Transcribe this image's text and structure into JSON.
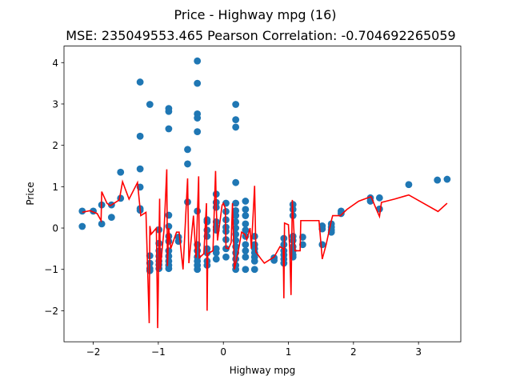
{
  "chart_data": {
    "type": "scatter",
    "title": "Price - Highway mpg (16)",
    "subtitle": "MSE: 235049553.465 Pearson Correlation: -0.704692265059",
    "xlabel": "Highway mpg",
    "ylabel": "Price",
    "xlim": [
      -2.45,
      3.65
    ],
    "ylim": [
      -2.75,
      4.4
    ],
    "xticks": [
      -2,
      -1,
      0,
      1,
      2,
      3
    ],
    "yticks": [
      -2,
      -1,
      0,
      1,
      2,
      3,
      4
    ],
    "grid": false,
    "colors": {
      "points": "#1f77b4",
      "line": "#ff0000",
      "axes": "#000000",
      "background": "#ffffff"
    },
    "series": [
      {
        "kind": "scatter",
        "points": [
          [
            -2.17,
            0.41
          ],
          [
            -2.17,
            0.04
          ],
          [
            -2.0,
            0.41
          ],
          [
            -1.87,
            0.56
          ],
          [
            -1.87,
            0.1
          ],
          [
            -1.72,
            0.56
          ],
          [
            -1.72,
            0.26
          ],
          [
            -1.58,
            1.35
          ],
          [
            -1.58,
            0.72
          ],
          [
            -1.28,
            3.53
          ],
          [
            -1.28,
            2.22
          ],
          [
            -1.28,
            1.43
          ],
          [
            -1.28,
            0.99
          ],
          [
            -1.28,
            0.47
          ],
          [
            -1.28,
            0.43
          ],
          [
            -1.13,
            2.99
          ],
          [
            -1.13,
            -0.67
          ],
          [
            -1.13,
            -0.85
          ],
          [
            -1.13,
            -0.98
          ],
          [
            -1.13,
            -1.03
          ],
          [
            -0.99,
            -0.04
          ],
          [
            -0.99,
            -0.37
          ],
          [
            -0.99,
            -0.55
          ],
          [
            -0.99,
            -0.68
          ],
          [
            -0.99,
            -0.8
          ],
          [
            -0.99,
            -0.89
          ],
          [
            -0.99,
            -0.98
          ],
          [
            -0.84,
            2.89
          ],
          [
            -0.84,
            2.82
          ],
          [
            -0.84,
            2.4
          ],
          [
            -0.84,
            0.31
          ],
          [
            -0.84,
            0.04
          ],
          [
            -0.84,
            -0.2
          ],
          [
            -0.84,
            -0.32
          ],
          [
            -0.84,
            -0.55
          ],
          [
            -0.84,
            -0.68
          ],
          [
            -0.84,
            -0.8
          ],
          [
            -0.84,
            -0.9
          ],
          [
            -0.84,
            -0.98
          ],
          [
            -0.69,
            -0.22
          ],
          [
            -0.69,
            -0.32
          ],
          [
            -0.55,
            1.9
          ],
          [
            -0.55,
            1.55
          ],
          [
            -0.55,
            0.63
          ],
          [
            -0.4,
            4.04
          ],
          [
            -0.4,
            3.5
          ],
          [
            -0.4,
            2.76
          ],
          [
            -0.4,
            2.66
          ],
          [
            -0.4,
            2.33
          ],
          [
            -0.4,
            0.41
          ],
          [
            -0.4,
            -0.4
          ],
          [
            -0.4,
            -0.55
          ],
          [
            -0.4,
            -0.7
          ],
          [
            -0.4,
            -0.8
          ],
          [
            -0.4,
            -0.9
          ],
          [
            -0.4,
            -1.0
          ],
          [
            -0.25,
            0.2
          ],
          [
            -0.25,
            0.15
          ],
          [
            -0.25,
            -0.05
          ],
          [
            -0.25,
            -0.2
          ],
          [
            -0.25,
            -0.5
          ],
          [
            -0.25,
            -0.6
          ],
          [
            -0.25,
            -0.8
          ],
          [
            -0.25,
            -0.9
          ],
          [
            -0.11,
            0.82
          ],
          [
            -0.11,
            0.62
          ],
          [
            -0.11,
            0.5
          ],
          [
            -0.11,
            0.15
          ],
          [
            -0.11,
            0.02
          ],
          [
            -0.11,
            -0.05
          ],
          [
            -0.11,
            -0.5
          ],
          [
            -0.11,
            -0.6
          ],
          [
            -0.11,
            -0.75
          ],
          [
            0.04,
            0.6
          ],
          [
            0.04,
            0.4
          ],
          [
            0.04,
            0.2
          ],
          [
            0.04,
            0.02
          ],
          [
            0.04,
            -0.08
          ],
          [
            0.04,
            -0.28
          ],
          [
            0.04,
            -0.5
          ],
          [
            0.04,
            -0.7
          ],
          [
            0.19,
            2.99
          ],
          [
            0.19,
            2.62
          ],
          [
            0.19,
            2.44
          ],
          [
            0.19,
            1.1
          ],
          [
            0.19,
            0.6
          ],
          [
            0.19,
            0.42
          ],
          [
            0.19,
            0.3
          ],
          [
            0.19,
            0.15
          ],
          [
            0.19,
            0.0
          ],
          [
            0.19,
            -0.15
          ],
          [
            0.19,
            -0.3
          ],
          [
            0.19,
            -0.45
          ],
          [
            0.19,
            -0.6
          ],
          [
            0.19,
            -0.75
          ],
          [
            0.19,
            -0.9
          ],
          [
            0.19,
            -1.0
          ],
          [
            0.34,
            0.65
          ],
          [
            0.34,
            0.45
          ],
          [
            0.34,
            0.3
          ],
          [
            0.34,
            0.1
          ],
          [
            0.34,
            -0.05
          ],
          [
            0.34,
            -0.2
          ],
          [
            0.34,
            -0.4
          ],
          [
            0.34,
            -0.55
          ],
          [
            0.34,
            -0.7
          ],
          [
            0.34,
            -1.0
          ],
          [
            0.48,
            -0.2
          ],
          [
            0.48,
            -0.4
          ],
          [
            0.48,
            -0.5
          ],
          [
            0.48,
            -0.6
          ],
          [
            0.48,
            -0.7
          ],
          [
            0.48,
            -0.8
          ],
          [
            0.48,
            -1.0
          ],
          [
            0.78,
            -0.72
          ],
          [
            0.78,
            -0.78
          ],
          [
            0.93,
            -0.25
          ],
          [
            0.93,
            -0.4
          ],
          [
            0.93,
            -0.55
          ],
          [
            0.93,
            -0.65
          ],
          [
            0.93,
            -0.75
          ],
          [
            0.93,
            -0.85
          ],
          [
            1.07,
            0.57
          ],
          [
            1.07,
            0.45
          ],
          [
            1.07,
            0.3
          ],
          [
            1.07,
            -0.2
          ],
          [
            1.07,
            -0.3
          ],
          [
            1.07,
            -0.45
          ],
          [
            1.07,
            -0.55
          ],
          [
            1.07,
            -0.65
          ],
          [
            1.07,
            -0.7
          ],
          [
            1.22,
            -0.22
          ],
          [
            1.22,
            -0.4
          ],
          [
            1.52,
            0.05
          ],
          [
            1.52,
            -0.02
          ],
          [
            1.52,
            -0.4
          ],
          [
            1.66,
            0.1
          ],
          [
            1.66,
            0.02
          ],
          [
            1.66,
            -0.05
          ],
          [
            1.66,
            -0.1
          ],
          [
            1.81,
            0.41
          ],
          [
            1.81,
            0.35
          ],
          [
            2.26,
            0.73
          ],
          [
            2.26,
            0.65
          ],
          [
            2.4,
            0.73
          ],
          [
            2.4,
            0.46
          ],
          [
            2.85,
            1.05
          ],
          [
            3.29,
            1.16
          ],
          [
            3.44,
            1.18
          ]
        ]
      },
      {
        "kind": "line",
        "points": [
          [
            -2.17,
            0.38
          ],
          [
            -2.05,
            0.42
          ],
          [
            -1.99,
            0.38
          ],
          [
            -1.94,
            0.35
          ],
          [
            -1.88,
            0.18
          ],
          [
            -1.87,
            0.88
          ],
          [
            -1.79,
            0.6
          ],
          [
            -1.74,
            0.54
          ],
          [
            -1.6,
            0.68
          ],
          [
            -1.55,
            1.12
          ],
          [
            -1.45,
            0.7
          ],
          [
            -1.32,
            1.1
          ],
          [
            -1.27,
            0.3
          ],
          [
            -1.19,
            0.38
          ],
          [
            -1.14,
            -2.3
          ],
          [
            -1.13,
            0.05
          ],
          [
            -1.11,
            -0.15
          ],
          [
            -1.03,
            0.0
          ],
          [
            -1.01,
            -2.42
          ],
          [
            -0.98,
            0.71
          ],
          [
            -0.97,
            -1.0
          ],
          [
            -0.91,
            0.0
          ],
          [
            -0.87,
            1.42
          ],
          [
            -0.86,
            -0.92
          ],
          [
            -0.84,
            0.0
          ],
          [
            -0.81,
            -0.5
          ],
          [
            -0.72,
            -0.1
          ],
          [
            -0.68,
            -0.1
          ],
          [
            -0.65,
            -0.55
          ],
          [
            -0.62,
            -1.0
          ],
          [
            -0.55,
            1.2
          ],
          [
            -0.53,
            -0.85
          ],
          [
            -0.46,
            0.3
          ],
          [
            -0.42,
            -0.72
          ],
          [
            -0.38,
            1.25
          ],
          [
            -0.37,
            -0.72
          ],
          [
            -0.3,
            -0.62
          ],
          [
            -0.26,
            0.6
          ],
          [
            -0.25,
            -2.0
          ],
          [
            -0.24,
            -0.62
          ],
          [
            -0.16,
            -0.55
          ],
          [
            -0.12,
            1.38
          ],
          [
            -0.11,
            0.55
          ],
          [
            -0.09,
            -0.3
          ],
          [
            -0.02,
            0.55
          ],
          [
            0.0,
            0.6
          ],
          [
            0.03,
            0.48
          ],
          [
            0.04,
            -0.48
          ],
          [
            0.08,
            -0.5
          ],
          [
            0.12,
            -0.35
          ],
          [
            0.14,
            0.6
          ],
          [
            0.17,
            -1.0
          ],
          [
            0.23,
            -0.55
          ],
          [
            0.28,
            -0.1
          ],
          [
            0.33,
            -0.15
          ],
          [
            0.36,
            -0.28
          ],
          [
            0.41,
            0.0
          ],
          [
            0.43,
            -0.5
          ],
          [
            0.47,
            0.7
          ],
          [
            0.48,
            1.02
          ],
          [
            0.5,
            -0.58
          ],
          [
            0.58,
            -0.75
          ],
          [
            0.63,
            -0.85
          ],
          [
            0.78,
            -0.7
          ],
          [
            0.87,
            -0.45
          ],
          [
            0.92,
            -0.5
          ],
          [
            0.93,
            -1.7
          ],
          [
            0.94,
            0.12
          ],
          [
            1.0,
            0.08
          ],
          [
            1.02,
            -0.5
          ],
          [
            1.04,
            -1.62
          ],
          [
            1.06,
            0.68
          ],
          [
            1.1,
            -0.55
          ],
          [
            1.14,
            -0.55
          ],
          [
            1.18,
            -0.55
          ],
          [
            1.19,
            0.18
          ],
          [
            1.3,
            0.18
          ],
          [
            1.4,
            0.18
          ],
          [
            1.47,
            0.18
          ],
          [
            1.52,
            -0.75
          ],
          [
            1.58,
            -0.4
          ],
          [
            1.66,
            0.18
          ],
          [
            1.68,
            0.3
          ],
          [
            1.8,
            0.3
          ],
          [
            1.9,
            0.45
          ],
          [
            2.08,
            0.65
          ],
          [
            2.27,
            0.76
          ],
          [
            2.35,
            0.46
          ],
          [
            2.4,
            0.28
          ],
          [
            2.43,
            0.62
          ],
          [
            2.63,
            0.7
          ],
          [
            2.85,
            0.8
          ],
          [
            3.3,
            0.4
          ],
          [
            3.44,
            0.6
          ]
        ]
      }
    ]
  }
}
